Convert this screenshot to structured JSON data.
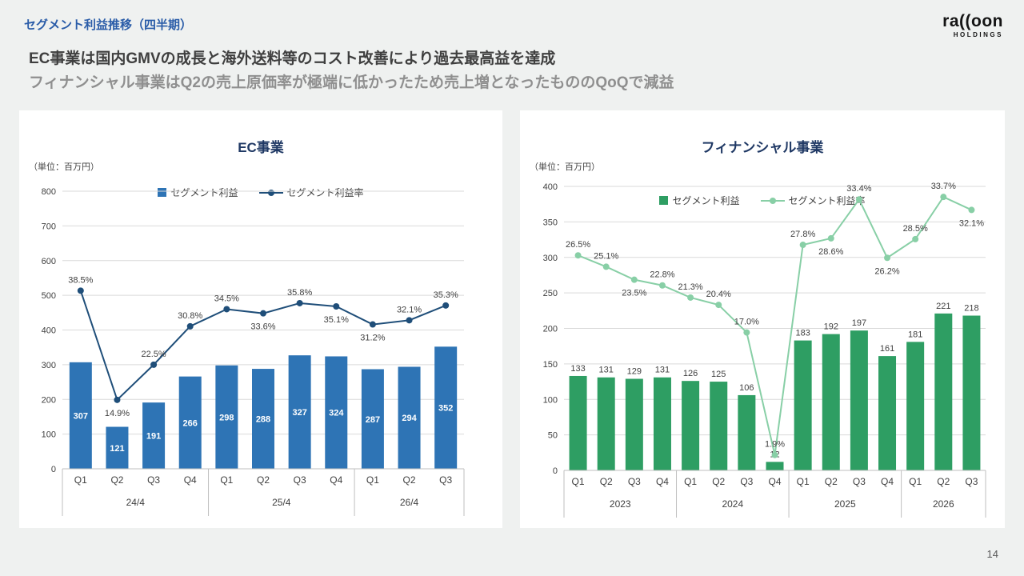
{
  "slide": {
    "title": "セグメント利益推移（四半期）",
    "headline1": "EC事業は国内GMVの成長と海外送料等のコスト改善により過去最高益を達成",
    "headline2": "フィナンシャル事業はQ2の売上原価率が極端に低かったため売上増となったもののQoQで減益",
    "page_number": "14"
  },
  "logo": {
    "wordmark": "ra((oon",
    "subtitle": "HOLDINGS"
  },
  "chart_data": [
    {
      "type": "bar",
      "title": "EC事業",
      "unit_label": "（単位：百万円）",
      "legend": [
        "セグメント利益",
        "セグメント利益率"
      ],
      "categories": [
        "Q1",
        "Q2",
        "Q3",
        "Q4",
        "Q1",
        "Q2",
        "Q3",
        "Q4",
        "Q1",
        "Q2",
        "Q3"
      ],
      "groups": [
        {
          "label": "24/4",
          "span": 4
        },
        {
          "label": "25/4",
          "span": 4
        },
        {
          "label": "26/4",
          "span": 3
        }
      ],
      "series": [
        {
          "name": "セグメント利益",
          "type": "bar",
          "values": [
            307,
            121,
            191,
            266,
            298,
            288,
            327,
            324,
            287,
            294,
            352
          ]
        },
        {
          "name": "セグメント利益率",
          "type": "line",
          "values_pct": [
            38.5,
            14.9,
            22.5,
            30.8,
            34.5,
            33.6,
            35.8,
            35.1,
            31.2,
            32.1,
            35.3
          ]
        }
      ],
      "y_axis": {
        "min": 0,
        "max": 800,
        "step": 100
      },
      "secondary_axis": {
        "min": 0,
        "max": 60,
        "visible": false
      },
      "colors": {
        "bar": "#2e74b5",
        "line": "#1f4e79"
      },
      "grid": true,
      "legend_position": "top-center",
      "bar_label_style": "inside-center-white",
      "pct_label_placement": [
        "above",
        "below",
        "above",
        "above",
        "above",
        "below",
        "above",
        "below",
        "below",
        "above",
        "above"
      ]
    },
    {
      "type": "bar",
      "title": "フィナンシャル事業",
      "unit_label": "（単位：百万円）",
      "legend": [
        "セグメント利益",
        "セグメント利益率"
      ],
      "categories": [
        "Q1",
        "Q2",
        "Q3",
        "Q4",
        "Q1",
        "Q2",
        "Q3",
        "Q4",
        "Q1",
        "Q2",
        "Q3",
        "Q4",
        "Q1",
        "Q2",
        "Q3"
      ],
      "groups": [
        {
          "label": "2023",
          "span": 4
        },
        {
          "label": "2024",
          "span": 4
        },
        {
          "label": "2025",
          "span": 4
        },
        {
          "label": "2026",
          "span": 3
        }
      ],
      "series": [
        {
          "name": "セグメント利益",
          "type": "bar",
          "values": [
            133,
            131,
            129,
            131,
            126,
            125,
            106,
            12,
            183,
            192,
            197,
            161,
            181,
            221,
            218
          ]
        },
        {
          "name": "セグメント利益率",
          "type": "line",
          "values_pct": [
            26.5,
            25.1,
            23.5,
            22.8,
            21.3,
            20.4,
            17.0,
            1.9,
            27.8,
            28.6,
            33.4,
            26.2,
            28.5,
            33.7,
            32.1
          ]
        }
      ],
      "y_axis": {
        "min": 0,
        "max": 400,
        "step": 50
      },
      "secondary_axis": {
        "min": 0,
        "max": 35,
        "visible": false
      },
      "colors": {
        "bar": "#2e9e63",
        "line": "#88cfa6"
      },
      "grid": true,
      "legend_position": "top-center",
      "bar_label_style": "above",
      "pct_label_placement": [
        "above",
        "above",
        "below",
        "above",
        "above",
        "above",
        "above",
        "above",
        "above",
        "below",
        "above",
        "below",
        "above",
        "above",
        "below"
      ]
    }
  ]
}
